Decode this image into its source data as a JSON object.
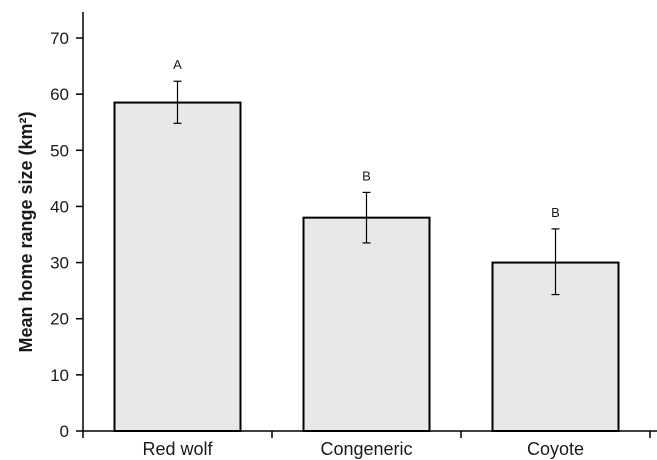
{
  "chart_data": {
    "type": "bar",
    "categories": [
      "Red wolf",
      "Congeneric",
      "Coyote"
    ],
    "values": [
      58.5,
      38.0,
      30.0
    ],
    "error_low": [
      54.8,
      33.5,
      24.3
    ],
    "error_high": [
      62.3,
      42.5,
      36.0
    ],
    "significance_labels": [
      "A",
      "B",
      "B"
    ],
    "ylabel": "Mean home range size (km²)",
    "xlabel": "",
    "title": "",
    "ylim": [
      0,
      70
    ],
    "yticks": [
      0,
      10,
      20,
      30,
      40,
      50,
      60,
      70
    ],
    "grid": false,
    "bar_color": "#e8e8e8",
    "bar_edge_color": "#000000"
  }
}
